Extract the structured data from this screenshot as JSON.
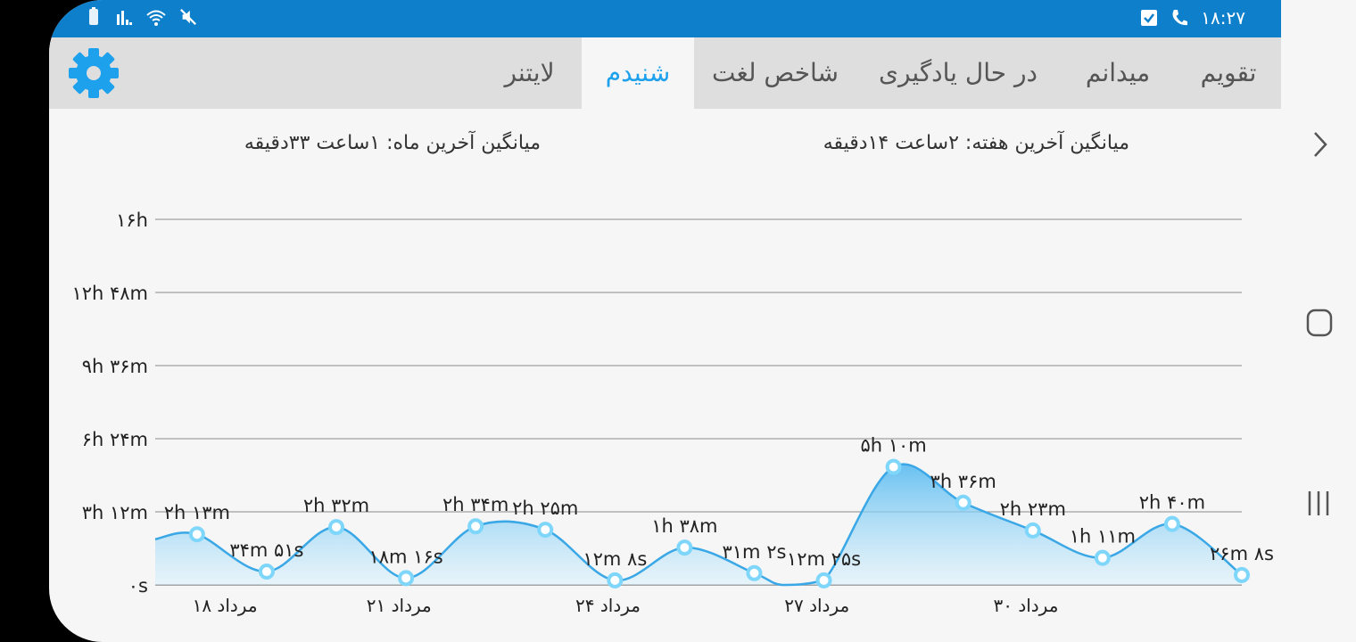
{
  "status_bar": {
    "time": "۱۸:۲۷",
    "icons_left": [
      "battery-icon",
      "signal-icon",
      "wifi-icon",
      "mute-icon"
    ],
    "icons_right": [
      "checkbox-icon",
      "phone-icon"
    ]
  },
  "tabs": [
    {
      "label": "تقویم",
      "active": false
    },
    {
      "label": "میدانم",
      "active": false
    },
    {
      "label": "در حال یادگیری",
      "active": false
    },
    {
      "label": "شاخص لغت",
      "active": false
    },
    {
      "label": "شنیدم",
      "active": true
    },
    {
      "label": "لایتنر",
      "active": false
    }
  ],
  "settings_icon": "gear-icon",
  "summary": {
    "week_average": "میانگین آخرین هفته: ۲ساعت  ۱۴دقیقه",
    "month_average": "میانگین آخرین ماه: ۱ساعت  ۳۳دقیقه"
  },
  "colors": {
    "accent": "#1ea1ec",
    "status_bar": "#0e7fcb",
    "line": "#3aa7e6",
    "marker": "#7fd6fb"
  },
  "chart_data": {
    "type": "area",
    "y_ticks": [
      "۰s",
      "۳h ۱۲m",
      "۶h ۲۴m",
      "۹h ۳۶m",
      "۱۲h ۴۸m",
      "۱۶h"
    ],
    "ylim_minutes": [
      0,
      960
    ],
    "x_labels": [
      {
        "label": "۱۸ مرداد",
        "index": 1
      },
      {
        "label": "۲۱ مرداد",
        "index": 3.5
      },
      {
        "label": "۲۴ مرداد",
        "index": 6.5
      },
      {
        "label": "۲۷ مرداد",
        "index": 9.5
      },
      {
        "label": "۳۰ مرداد",
        "index": 12.5
      }
    ],
    "points": [
      {
        "index": 0,
        "minutes": 120,
        "label": "",
        "marker": false
      },
      {
        "index": 0.6,
        "minutes": 133,
        "label": "۲h ۱۳m",
        "marker": true
      },
      {
        "index": 1.6,
        "minutes": 35,
        "label": "۳۴m ۵۱s",
        "marker": true
      },
      {
        "index": 2.6,
        "minutes": 152,
        "label": "۲h ۳۲m",
        "marker": true
      },
      {
        "index": 3.6,
        "minutes": 18,
        "label": "۱۸m ۱۶s",
        "marker": true
      },
      {
        "index": 4.6,
        "minutes": 154,
        "label": "۲h ۳۴m",
        "marker": true
      },
      {
        "index": 5.6,
        "minutes": 145,
        "label": "۲h ۲۵m",
        "marker": true
      },
      {
        "index": 6.6,
        "minutes": 12,
        "label": "۱۲m ۸s",
        "marker": true
      },
      {
        "index": 7.6,
        "minutes": 98,
        "label": "۱h ۳۸m",
        "marker": true
      },
      {
        "index": 8.6,
        "minutes": 31,
        "label": "۳۱m ۲s",
        "marker": true
      },
      {
        "index": 9.0,
        "minutes": 0,
        "label": "",
        "marker": false
      },
      {
        "index": 9.6,
        "minutes": 12,
        "label": "۱۲m ۲۵s",
        "marker": true
      },
      {
        "index": 10.6,
        "minutes": 310,
        "label": "۵h ۱۰m",
        "marker": true
      },
      {
        "index": 11.6,
        "minutes": 216,
        "label": "۳h ۳۶m",
        "marker": true
      },
      {
        "index": 12.6,
        "minutes": 143,
        "label": "۲h ۲۳m",
        "marker": true
      },
      {
        "index": 13.6,
        "minutes": 71,
        "label": "۱h ۱۱m",
        "marker": true
      },
      {
        "index": 14.6,
        "minutes": 160,
        "label": "۲h ۴۰m",
        "marker": true
      },
      {
        "index": 15.6,
        "minutes": 26,
        "label": "۲۶m ۸s",
        "marker": true
      }
    ],
    "xlim_index": [
      0,
      15.6
    ],
    "grid": true
  },
  "nav_bar": {
    "icons": [
      "chevron-right-icon",
      "home-icon",
      "recents-icon"
    ]
  }
}
